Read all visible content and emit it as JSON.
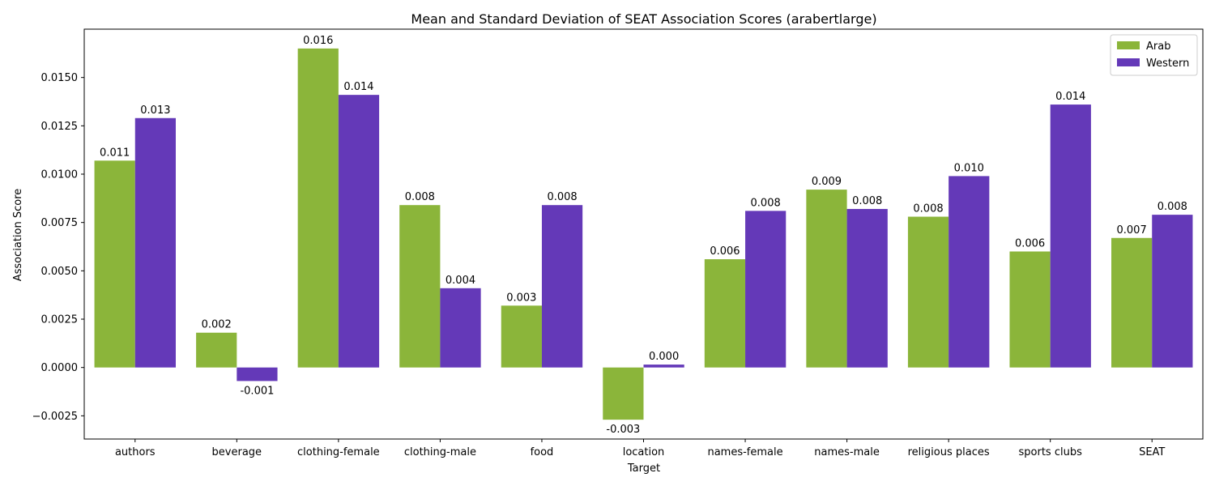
{
  "chart_data": {
    "type": "bar",
    "title": "Mean and Standard Deviation of SEAT Association Scores (arabertlarge)",
    "xlabel": "Target",
    "ylabel": "Association Score",
    "ylim": [
      -0.0037,
      0.0175
    ],
    "yticks": [
      -0.0025,
      0.0,
      0.0025,
      0.005,
      0.0075,
      0.01,
      0.0125,
      0.015
    ],
    "ytick_labels": [
      "−0.0025",
      "0.0000",
      "0.0025",
      "0.0050",
      "0.0075",
      "0.0100",
      "0.0125",
      "0.0150"
    ],
    "grid": false,
    "legend_position": "top-right",
    "categories": [
      "authors",
      "beverage",
      "clothing-female",
      "clothing-male",
      "food",
      "location",
      "names-female",
      "names-male",
      "religious places",
      "sports clubs",
      "SEAT"
    ],
    "series": [
      {
        "name": "Arab",
        "color": "#8bb53a",
        "values": [
          0.0107,
          0.0018,
          0.0165,
          0.0084,
          0.0032,
          -0.0027,
          0.0056,
          0.0092,
          0.0078,
          0.006,
          0.0067
        ],
        "data_labels": [
          "0.011",
          "0.002",
          "0.016",
          "0.008",
          "0.003",
          "-0.003",
          "0.006",
          "0.009",
          "0.008",
          "0.006",
          "0.007"
        ]
      },
      {
        "name": "Western",
        "color": "#6439b8",
        "values": [
          0.0129,
          -0.0007,
          0.0141,
          0.0041,
          0.0084,
          0.00015,
          0.0081,
          0.0082,
          0.0099,
          0.0136,
          0.0079
        ],
        "data_labels": [
          "0.013",
          "-0.001",
          "0.014",
          "0.004",
          "0.008",
          "0.000",
          "0.008",
          "0.008",
          "0.010",
          "0.014",
          "0.008"
        ]
      }
    ]
  }
}
